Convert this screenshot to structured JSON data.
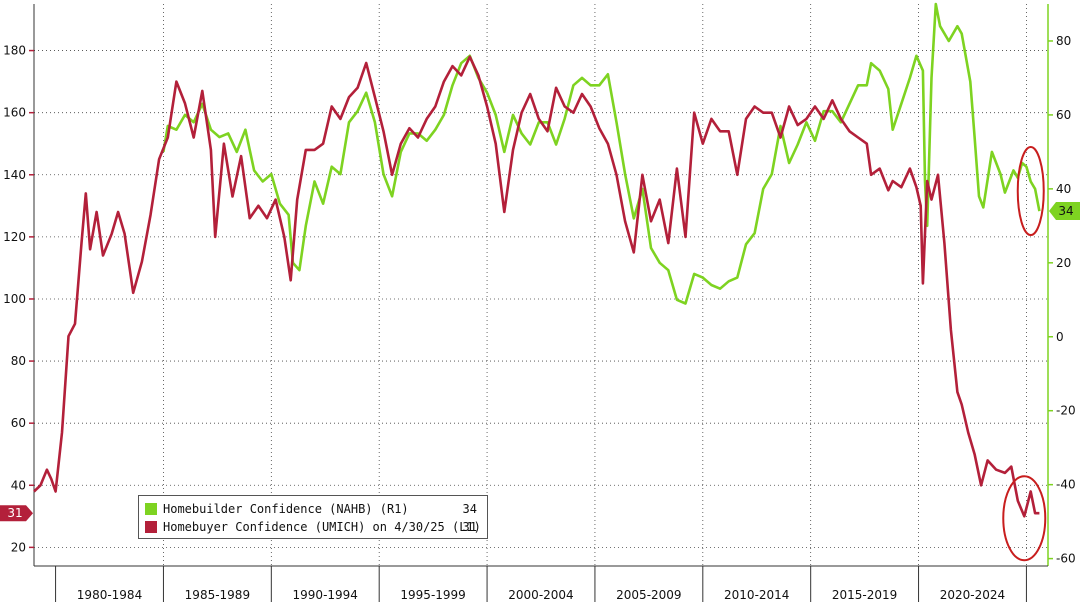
{
  "chart_data": {
    "type": "line",
    "title": "",
    "x_categories": [
      "1980-1984",
      "1985-1989",
      "1990-1994",
      "1995-1999",
      "2000-2004",
      "2005-2009",
      "2010-2014",
      "2015-2019",
      "2020-2024"
    ],
    "y_left": {
      "ticks": [
        20,
        40,
        60,
        80,
        100,
        120,
        140,
        160,
        180
      ],
      "range": [
        14,
        195
      ]
    },
    "y_right": {
      "ticks": [
        -60,
        -40,
        -20,
        0,
        20,
        40,
        60,
        80
      ],
      "range": [
        -62,
        90
      ]
    },
    "colors": {
      "nahb": "#7ed321",
      "umich": "#b3203a",
      "annotation": "#c81e1e"
    },
    "series": [
      {
        "key": "nahb",
        "axis": "right",
        "values": [
          [
            1985.0,
            50
          ],
          [
            1985.2,
            57
          ],
          [
            1985.6,
            56
          ],
          [
            1986.0,
            60
          ],
          [
            1986.4,
            58
          ],
          [
            1986.8,
            63
          ],
          [
            1987.2,
            56
          ],
          [
            1987.6,
            54
          ],
          [
            1988.0,
            55
          ],
          [
            1988.4,
            50
          ],
          [
            1988.8,
            56
          ],
          [
            1989.2,
            45
          ],
          [
            1989.6,
            42
          ],
          [
            1990.0,
            44
          ],
          [
            1990.4,
            36
          ],
          [
            1990.8,
            33
          ],
          [
            1991.0,
            20
          ],
          [
            1991.3,
            18
          ],
          [
            1991.6,
            30
          ],
          [
            1992.0,
            42
          ],
          [
            1992.4,
            36
          ],
          [
            1992.8,
            46
          ],
          [
            1993.2,
            44
          ],
          [
            1993.6,
            58
          ],
          [
            1994.0,
            61
          ],
          [
            1994.4,
            66
          ],
          [
            1994.8,
            58
          ],
          [
            1995.2,
            44
          ],
          [
            1995.6,
            38
          ],
          [
            1996.0,
            50
          ],
          [
            1996.4,
            55
          ],
          [
            1996.8,
            55
          ],
          [
            1997.2,
            53
          ],
          [
            1997.6,
            56
          ],
          [
            1998.0,
            60
          ],
          [
            1998.4,
            68
          ],
          [
            1998.8,
            74
          ],
          [
            1999.2,
            76
          ],
          [
            1999.6,
            70
          ],
          [
            2000.0,
            66
          ],
          [
            2000.4,
            60
          ],
          [
            2000.8,
            50
          ],
          [
            2001.2,
            60
          ],
          [
            2001.6,
            55
          ],
          [
            2002.0,
            52
          ],
          [
            2002.4,
            58
          ],
          [
            2002.8,
            58
          ],
          [
            2003.2,
            52
          ],
          [
            2003.6,
            59
          ],
          [
            2004.0,
            68
          ],
          [
            2004.4,
            70
          ],
          [
            2004.8,
            68
          ],
          [
            2005.2,
            68
          ],
          [
            2005.6,
            71
          ],
          [
            2006.0,
            58
          ],
          [
            2006.4,
            44
          ],
          [
            2006.8,
            32
          ],
          [
            2007.2,
            40
          ],
          [
            2007.6,
            24
          ],
          [
            2008.0,
            20
          ],
          [
            2008.4,
            18
          ],
          [
            2008.8,
            10
          ],
          [
            2009.2,
            9
          ],
          [
            2009.6,
            17
          ],
          [
            2010.0,
            16
          ],
          [
            2010.4,
            14
          ],
          [
            2010.8,
            13
          ],
          [
            2011.2,
            15
          ],
          [
            2011.6,
            16
          ],
          [
            2012.0,
            25
          ],
          [
            2012.4,
            28
          ],
          [
            2012.8,
            40
          ],
          [
            2013.2,
            44
          ],
          [
            2013.6,
            57
          ],
          [
            2014.0,
            47
          ],
          [
            2014.4,
            52
          ],
          [
            2014.8,
            58
          ],
          [
            2015.2,
            53
          ],
          [
            2015.6,
            61
          ],
          [
            2016.0,
            61
          ],
          [
            2016.4,
            58
          ],
          [
            2016.8,
            63
          ],
          [
            2017.2,
            68
          ],
          [
            2017.6,
            68
          ],
          [
            2017.8,
            74
          ],
          [
            2018.2,
            72
          ],
          [
            2018.6,
            67
          ],
          [
            2018.8,
            56
          ],
          [
            2019.2,
            63
          ],
          [
            2019.6,
            70
          ],
          [
            2019.9,
            76
          ],
          [
            2020.2,
            72
          ],
          [
            2020.3,
            42
          ],
          [
            2020.4,
            30
          ],
          [
            2020.6,
            70
          ],
          [
            2020.8,
            90
          ],
          [
            2021.0,
            84
          ],
          [
            2021.4,
            80
          ],
          [
            2021.8,
            84
          ],
          [
            2022.0,
            82
          ],
          [
            2022.4,
            69
          ],
          [
            2022.6,
            54
          ],
          [
            2022.8,
            38
          ],
          [
            2023.0,
            35
          ],
          [
            2023.4,
            50
          ],
          [
            2023.8,
            44
          ],
          [
            2024.0,
            39
          ],
          [
            2024.4,
            45
          ],
          [
            2024.6,
            43
          ],
          [
            2024.8,
            47
          ],
          [
            2025.0,
            46
          ],
          [
            2025.2,
            42
          ],
          [
            2025.4,
            40
          ],
          [
            2025.6,
            34
          ]
        ]
      },
      {
        "key": "umich",
        "axis": "left",
        "values": [
          [
            1979.0,
            38
          ],
          [
            1979.3,
            40
          ],
          [
            1979.6,
            45
          ],
          [
            1979.8,
            42
          ],
          [
            1980.0,
            38
          ],
          [
            1980.3,
            57
          ],
          [
            1980.6,
            88
          ],
          [
            1980.9,
            92
          ],
          [
            1981.2,
            118
          ],
          [
            1981.4,
            134
          ],
          [
            1981.6,
            116
          ],
          [
            1981.9,
            128
          ],
          [
            1982.2,
            114
          ],
          [
            1982.6,
            121
          ],
          [
            1982.9,
            128
          ],
          [
            1983.2,
            121
          ],
          [
            1983.6,
            102
          ],
          [
            1984.0,
            112
          ],
          [
            1984.4,
            127
          ],
          [
            1984.8,
            145
          ],
          [
            1985.2,
            152
          ],
          [
            1985.6,
            170
          ],
          [
            1986.0,
            163
          ],
          [
            1986.4,
            152
          ],
          [
            1986.8,
            167
          ],
          [
            1987.2,
            148
          ],
          [
            1987.4,
            120
          ],
          [
            1987.8,
            150
          ],
          [
            1988.2,
            133
          ],
          [
            1988.6,
            146
          ],
          [
            1989.0,
            126
          ],
          [
            1989.4,
            130
          ],
          [
            1989.8,
            126
          ],
          [
            1990.2,
            132
          ],
          [
            1990.6,
            120
          ],
          [
            1990.9,
            106
          ],
          [
            1991.2,
            132
          ],
          [
            1991.6,
            148
          ],
          [
            1992.0,
            148
          ],
          [
            1992.4,
            150
          ],
          [
            1992.8,
            162
          ],
          [
            1993.2,
            158
          ],
          [
            1993.6,
            165
          ],
          [
            1994.0,
            168
          ],
          [
            1994.4,
            176
          ],
          [
            1994.8,
            165
          ],
          [
            1995.2,
            154
          ],
          [
            1995.6,
            140
          ],
          [
            1996.0,
            150
          ],
          [
            1996.4,
            155
          ],
          [
            1996.8,
            152
          ],
          [
            1997.2,
            158
          ],
          [
            1997.6,
            162
          ],
          [
            1998.0,
            170
          ],
          [
            1998.4,
            175
          ],
          [
            1998.8,
            172
          ],
          [
            1999.2,
            178
          ],
          [
            1999.6,
            172
          ],
          [
            2000.0,
            162
          ],
          [
            2000.4,
            150
          ],
          [
            2000.8,
            128
          ],
          [
            2001.2,
            148
          ],
          [
            2001.6,
            160
          ],
          [
            2002.0,
            166
          ],
          [
            2002.4,
            158
          ],
          [
            2002.8,
            154
          ],
          [
            2003.2,
            168
          ],
          [
            2003.6,
            162
          ],
          [
            2004.0,
            160
          ],
          [
            2004.4,
            166
          ],
          [
            2004.8,
            162
          ],
          [
            2005.2,
            155
          ],
          [
            2005.6,
            150
          ],
          [
            2006.0,
            140
          ],
          [
            2006.4,
            125
          ],
          [
            2006.8,
            115
          ],
          [
            2007.2,
            140
          ],
          [
            2007.6,
            125
          ],
          [
            2008.0,
            132
          ],
          [
            2008.4,
            118
          ],
          [
            2008.8,
            142
          ],
          [
            2009.2,
            120
          ],
          [
            2009.6,
            160
          ],
          [
            2010.0,
            150
          ],
          [
            2010.4,
            158
          ],
          [
            2010.8,
            154
          ],
          [
            2011.2,
            154
          ],
          [
            2011.6,
            140
          ],
          [
            2012.0,
            158
          ],
          [
            2012.4,
            162
          ],
          [
            2012.8,
            160
          ],
          [
            2013.2,
            160
          ],
          [
            2013.6,
            152
          ],
          [
            2014.0,
            162
          ],
          [
            2014.4,
            156
          ],
          [
            2014.8,
            158
          ],
          [
            2015.2,
            162
          ],
          [
            2015.6,
            158
          ],
          [
            2016.0,
            164
          ],
          [
            2016.4,
            158
          ],
          [
            2016.8,
            154
          ],
          [
            2017.2,
            152
          ],
          [
            2017.6,
            150
          ],
          [
            2017.8,
            140
          ],
          [
            2018.2,
            142
          ],
          [
            2018.6,
            135
          ],
          [
            2018.8,
            138
          ],
          [
            2019.2,
            136
          ],
          [
            2019.6,
            142
          ],
          [
            2019.9,
            136
          ],
          [
            2020.1,
            130
          ],
          [
            2020.2,
            105
          ],
          [
            2020.4,
            138
          ],
          [
            2020.6,
            132
          ],
          [
            2020.9,
            140
          ],
          [
            2021.2,
            118
          ],
          [
            2021.5,
            90
          ],
          [
            2021.8,
            70
          ],
          [
            2022.0,
            66
          ],
          [
            2022.3,
            57
          ],
          [
            2022.6,
            50
          ],
          [
            2022.9,
            40
          ],
          [
            2023.2,
            48
          ],
          [
            2023.6,
            45
          ],
          [
            2024.0,
            44
          ],
          [
            2024.3,
            46
          ],
          [
            2024.6,
            35
          ],
          [
            2024.9,
            30
          ],
          [
            2025.2,
            38
          ],
          [
            2025.4,
            31
          ],
          [
            2025.6,
            31
          ]
        ]
      }
    ],
    "legend": [
      {
        "label": "Homebuilder Confidence (NAHB) (R1)",
        "value": "34",
        "color": "#7ed321"
      },
      {
        "label": "Homebuyer Confidence (UMICH) on 4/30/25 (L1)",
        "value": "31",
        "color": "#b3203a"
      }
    ],
    "end_labels": {
      "left": "31",
      "right": "34"
    },
    "grid": true
  }
}
